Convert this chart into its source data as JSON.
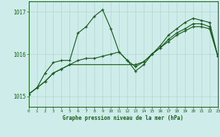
{
  "xlabel": "Graphe pression niveau de la mer (hPa)",
  "bg_color": "#ceecea",
  "grid_color": "#aed4d2",
  "line_color": "#1a5c1a",
  "xlim": [
    0,
    23
  ],
  "ylim": [
    1014.75,
    1017.25
  ],
  "yticks": [
    1015,
    1016,
    1017
  ],
  "xticks": [
    0,
    1,
    2,
    3,
    4,
    5,
    6,
    7,
    8,
    9,
    10,
    11,
    12,
    13,
    14,
    15,
    16,
    17,
    18,
    19,
    20,
    21,
    22,
    23
  ],
  "series1_x": [
    0,
    1,
    2,
    3,
    4,
    5,
    6,
    7,
    8,
    9,
    10,
    11,
    12,
    13,
    14,
    15,
    16,
    17,
    18,
    19,
    20,
    21,
    22,
    23
  ],
  "series1_y": [
    1015.05,
    1015.2,
    1015.55,
    1015.8,
    1015.85,
    1015.85,
    1016.5,
    1016.65,
    1016.9,
    1017.05,
    1016.6,
    1016.05,
    1015.85,
    1015.6,
    1015.75,
    1016.0,
    1016.2,
    1016.45,
    1016.6,
    1016.75,
    1016.85,
    1016.8,
    1016.75,
    1015.95
  ],
  "series2_x": [
    0,
    1,
    2,
    3,
    4,
    5,
    6,
    7,
    8,
    9,
    10,
    11,
    12,
    13,
    14,
    15,
    16,
    17,
    18,
    19,
    20,
    21,
    22,
    23
  ],
  "series2_y": [
    1015.05,
    1015.2,
    1015.35,
    1015.55,
    1015.65,
    1015.75,
    1015.85,
    1015.9,
    1015.9,
    1015.95,
    1016.0,
    1016.05,
    1015.85,
    1015.7,
    1015.82,
    1016.0,
    1016.15,
    1016.3,
    1016.45,
    1016.55,
    1016.65,
    1016.65,
    1016.6,
    1015.95
  ],
  "series3_x": [
    0,
    2,
    3,
    4,
    5,
    13,
    14,
    15,
    16,
    17,
    18,
    19,
    20,
    21,
    22,
    23
  ],
  "series3_y": [
    1015.05,
    1015.35,
    1015.55,
    1015.65,
    1015.75,
    1015.75,
    1015.82,
    1016.0,
    1016.15,
    1016.35,
    1016.5,
    1016.6,
    1016.72,
    1016.72,
    1016.65,
    1015.95
  ]
}
